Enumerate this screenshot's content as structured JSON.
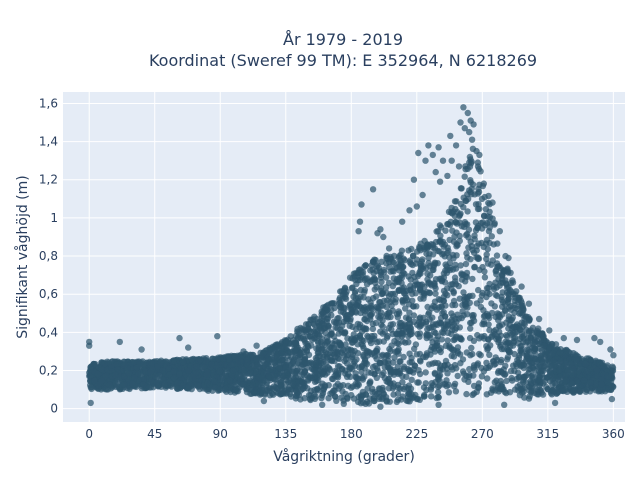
{
  "chart_data": {
    "type": "scatter",
    "title_line1": "År 1979 - 2019",
    "title_line2": "Koordinat (Sweref 99 TM): E 352964, N 6218269",
    "xlabel": "Vågriktning (grader)",
    "ylabel": "Signifikant våghöjd (m)",
    "xlim": [
      -18,
      368
    ],
    "ylim": [
      -0.07,
      1.66
    ],
    "xticks": [
      0,
      45,
      90,
      135,
      180,
      225,
      270,
      315,
      360
    ],
    "xtick_labels": [
      "0",
      "45",
      "90",
      "135",
      "180",
      "225",
      "270",
      "315",
      "360"
    ],
    "yticks": [
      0,
      0.2,
      0.4,
      0.6,
      0.8,
      1.0,
      1.2,
      1.4,
      1.6
    ],
    "ytick_labels": [
      "0",
      "0,2",
      "0,4",
      "0,6",
      "0,8",
      "1",
      "1,2",
      "1,4",
      "1,6"
    ],
    "grid": true,
    "marker_color": "#2e566d",
    "plot_background": "#e5ecf6",
    "envelope": {
      "x": [
        0,
        20,
        45,
        90,
        120,
        135,
        150,
        165,
        180,
        195,
        210,
        225,
        240,
        250,
        255,
        260,
        265,
        270,
        280,
        290,
        300,
        315,
        330,
        345,
        360
      ],
      "upper": [
        0.24,
        0.25,
        0.25,
        0.27,
        0.3,
        0.37,
        0.46,
        0.56,
        0.7,
        0.78,
        0.82,
        0.85,
        0.95,
        1.08,
        1.2,
        1.32,
        1.38,
        1.25,
        0.95,
        0.7,
        0.5,
        0.36,
        0.3,
        0.26,
        0.22
      ],
      "lower": [
        0.1,
        0.1,
        0.11,
        0.09,
        0.07,
        0.06,
        0.04,
        0.03,
        0.02,
        0.02,
        0.03,
        0.04,
        0.05,
        0.06,
        0.07,
        0.07,
        0.07,
        0.07,
        0.06,
        0.05,
        0.05,
        0.07,
        0.08,
        0.09,
        0.09
      ]
    },
    "outliers": [
      {
        "x": 0,
        "y": 0.35
      },
      {
        "x": 0,
        "y": 0.33
      },
      {
        "x": 1,
        "y": 0.03
      },
      {
        "x": 21,
        "y": 0.35
      },
      {
        "x": 36,
        "y": 0.31
      },
      {
        "x": 62,
        "y": 0.37
      },
      {
        "x": 68,
        "y": 0.32
      },
      {
        "x": 88,
        "y": 0.38
      },
      {
        "x": 106,
        "y": 0.3
      },
      {
        "x": 115,
        "y": 0.33
      },
      {
        "x": 160,
        "y": 0.48
      },
      {
        "x": 166,
        "y": 0.55
      },
      {
        "x": 175,
        "y": 0.62
      },
      {
        "x": 183,
        "y": 0.71
      },
      {
        "x": 185,
        "y": 0.93
      },
      {
        "x": 186,
        "y": 0.98
      },
      {
        "x": 187,
        "y": 1.07
      },
      {
        "x": 195,
        "y": 1.15
      },
      {
        "x": 198,
        "y": 0.92
      },
      {
        "x": 200,
        "y": 0.94
      },
      {
        "x": 202,
        "y": 0.9
      },
      {
        "x": 206,
        "y": 0.84
      },
      {
        "x": 215,
        "y": 0.98
      },
      {
        "x": 220,
        "y": 1.04
      },
      {
        "x": 225,
        "y": 1.06
      },
      {
        "x": 223,
        "y": 1.2
      },
      {
        "x": 226,
        "y": 1.34
      },
      {
        "x": 229,
        "y": 1.12
      },
      {
        "x": 231,
        "y": 1.3
      },
      {
        "x": 233,
        "y": 1.38
      },
      {
        "x": 236,
        "y": 1.33
      },
      {
        "x": 238,
        "y": 1.24
      },
      {
        "x": 240,
        "y": 1.37
      },
      {
        "x": 241,
        "y": 1.19
      },
      {
        "x": 243,
        "y": 1.3
      },
      {
        "x": 246,
        "y": 1.22
      },
      {
        "x": 248,
        "y": 1.43
      },
      {
        "x": 249,
        "y": 1.3
      },
      {
        "x": 252,
        "y": 1.38
      },
      {
        "x": 254,
        "y": 1.27
      },
      {
        "x": 255,
        "y": 1.5
      },
      {
        "x": 257,
        "y": 1.58
      },
      {
        "x": 258,
        "y": 1.47
      },
      {
        "x": 260,
        "y": 1.55
      },
      {
        "x": 261,
        "y": 1.45
      },
      {
        "x": 262,
        "y": 1.51
      },
      {
        "x": 263,
        "y": 1.41
      },
      {
        "x": 264,
        "y": 1.49
      },
      {
        "x": 266,
        "y": 1.35
      },
      {
        "x": 268,
        "y": 1.33
      },
      {
        "x": 271,
        "y": 1.18
      },
      {
        "x": 277,
        "y": 1.08
      },
      {
        "x": 282,
        "y": 0.93
      },
      {
        "x": 288,
        "y": 0.79
      },
      {
        "x": 297,
        "y": 0.64
      },
      {
        "x": 302,
        "y": 0.55
      },
      {
        "x": 309,
        "y": 0.47
      },
      {
        "x": 316,
        "y": 0.41
      },
      {
        "x": 326,
        "y": 0.37
      },
      {
        "x": 335,
        "y": 0.36
      },
      {
        "x": 347,
        "y": 0.37
      },
      {
        "x": 351,
        "y": 0.35
      },
      {
        "x": 358,
        "y": 0.31
      },
      {
        "x": 360,
        "y": 0.28
      },
      {
        "x": 359,
        "y": 0.05
      },
      {
        "x": 320,
        "y": 0.03
      },
      {
        "x": 285,
        "y": 0.02
      },
      {
        "x": 240,
        "y": 0.02
      },
      {
        "x": 200,
        "y": 0.01
      },
      {
        "x": 160,
        "y": 0.02
      },
      {
        "x": 120,
        "y": 0.04
      }
    ]
  }
}
